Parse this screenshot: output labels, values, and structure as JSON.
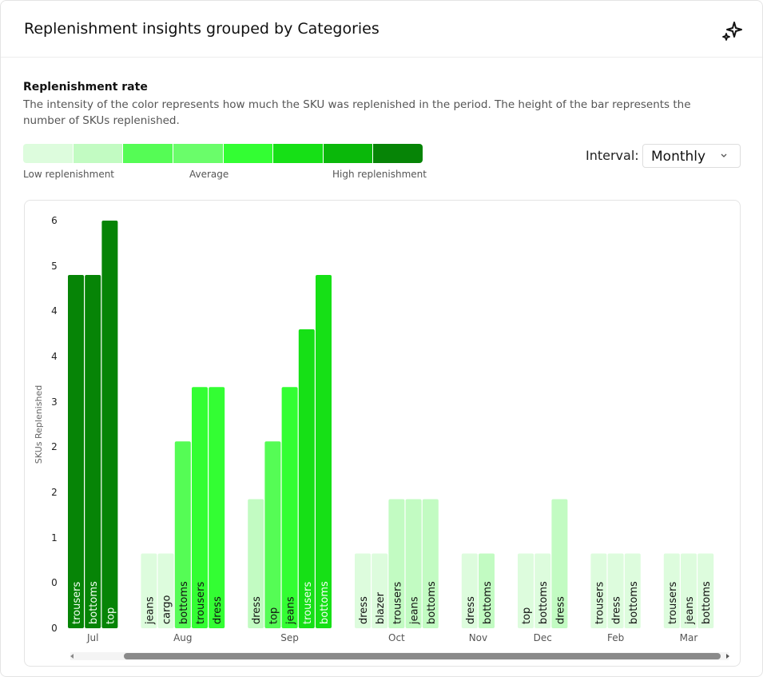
{
  "header": {
    "title": "Replenishment insights grouped by Categories"
  },
  "rate": {
    "title": "Replenishment rate",
    "description": "The intensity of the color represents how much the SKU was replenished in the period. The height of the bar represents the number of SKUs replenished.",
    "colors": [
      "#ddfcdd",
      "#c2fbc2",
      "#55fc55",
      "#6afd6a",
      "#33fe33",
      "#16e016",
      "#0ab80a",
      "#068406"
    ],
    "low_label": "Low replenishment",
    "mid_label": "Average",
    "high_label": "High replenishment"
  },
  "interval": {
    "label": "Interval:",
    "value": "Monthly"
  },
  "chart_data": {
    "type": "bar",
    "y_label": "SKUs Replenished",
    "ylim": [
      0,
      6
    ],
    "yticks": [
      {
        "value": 0,
        "label": "0"
      },
      {
        "value": 0.67,
        "label": "0"
      },
      {
        "value": 1.33,
        "label": "1"
      },
      {
        "value": 2,
        "label": "2"
      },
      {
        "value": 2.67,
        "label": "2"
      },
      {
        "value": 3.33,
        "label": "3"
      },
      {
        "value": 4,
        "label": "4"
      },
      {
        "value": 4.67,
        "label": "4"
      },
      {
        "value": 5.33,
        "label": "5"
      },
      {
        "value": 6,
        "label": "6"
      }
    ],
    "groups": [
      {
        "name": "Jul",
        "bars": [
          {
            "name": "trousers",
            "value": 5.2,
            "color": "#068406"
          },
          {
            "name": "bottoms",
            "value": 5.2,
            "color": "#068406"
          },
          {
            "name": "top",
            "value": 6,
            "color": "#068406"
          }
        ]
      },
      {
        "name": "Aug",
        "bars": [
          {
            "name": "jeans",
            "value": 1.1,
            "color": "#ddfcdd"
          },
          {
            "name": "cargo",
            "value": 1.1,
            "color": "#ddfcdd"
          },
          {
            "name": "bottoms",
            "value": 2.75,
            "color": "#55fc55"
          },
          {
            "name": "trousers",
            "value": 3.55,
            "color": "#33fe33"
          },
          {
            "name": "dress",
            "value": 3.55,
            "color": "#33fe33"
          }
        ]
      },
      {
        "name": "Sep",
        "bars": [
          {
            "name": "dress",
            "value": 1.9,
            "color": "#c2fbc2"
          },
          {
            "name": "top",
            "value": 2.75,
            "color": "#55fc55"
          },
          {
            "name": "jeans",
            "value": 3.55,
            "color": "#33fe33"
          },
          {
            "name": "trousers",
            "value": 4.4,
            "color": "#16e016"
          },
          {
            "name": "bottoms",
            "value": 5.2,
            "color": "#16e016"
          }
        ]
      },
      {
        "name": "Oct",
        "bars": [
          {
            "name": "dress",
            "value": 1.1,
            "color": "#ddfcdd"
          },
          {
            "name": "blazer",
            "value": 1.1,
            "color": "#ddfcdd"
          },
          {
            "name": "trousers",
            "value": 1.9,
            "color": "#c2fbc2"
          },
          {
            "name": "jeans",
            "value": 1.9,
            "color": "#c2fbc2"
          },
          {
            "name": "bottoms",
            "value": 1.9,
            "color": "#c2fbc2"
          }
        ]
      },
      {
        "name": "Nov",
        "bars": [
          {
            "name": "dress",
            "value": 1.1,
            "color": "#ddfcdd"
          },
          {
            "name": "bottoms",
            "value": 1.1,
            "color": "#c2fbc2"
          }
        ]
      },
      {
        "name": "Dec",
        "bars": [
          {
            "name": "top",
            "value": 1.1,
            "color": "#ddfcdd"
          },
          {
            "name": "bottoms",
            "value": 1.1,
            "color": "#ddfcdd"
          },
          {
            "name": "dress",
            "value": 1.9,
            "color": "#c2fbc2"
          }
        ]
      },
      {
        "name": "Feb",
        "bars": [
          {
            "name": "trousers",
            "value": 1.1,
            "color": "#ddfcdd"
          },
          {
            "name": "dress",
            "value": 1.1,
            "color": "#ddfcdd"
          },
          {
            "name": "bottoms",
            "value": 1.1,
            "color": "#ddfcdd"
          }
        ]
      },
      {
        "name": "Mar",
        "bars": [
          {
            "name": "trousers",
            "value": 1.1,
            "color": "#ddfcdd"
          },
          {
            "name": "jeans",
            "value": 1.1,
            "color": "#ddfcdd"
          },
          {
            "name": "bottoms",
            "value": 1.1,
            "color": "#ddfcdd"
          }
        ]
      }
    ]
  }
}
